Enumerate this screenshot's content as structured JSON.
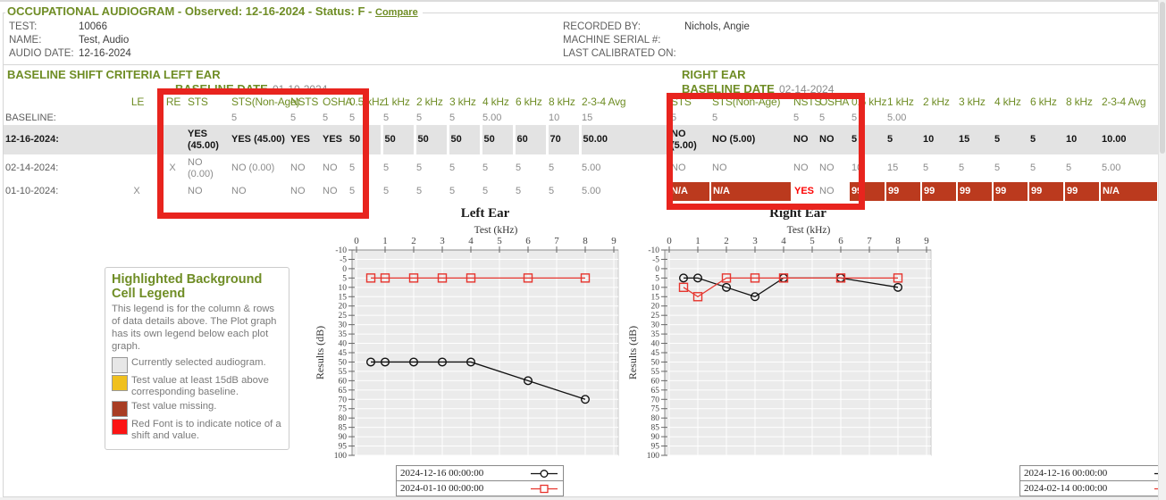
{
  "header": {
    "title": "OCCUPATIONAL AUDIOGRAM",
    "observed": "- Observed: 12-16-2024 - Status: F -",
    "compare_label": "Compare",
    "info_left": [
      {
        "label": "TEST:",
        "value": "10066"
      },
      {
        "label": "NAME:",
        "value": "Test, Audio"
      },
      {
        "label": "AUDIO DATE:",
        "value": "12-16-2024"
      }
    ],
    "info_right": [
      {
        "label": "RECORDED BY:",
        "value": "Nichols, Angie"
      },
      {
        "label": "MACHINE SERIAL #:",
        "value": ""
      },
      {
        "label": "LAST CALIBRATED ON:",
        "value": ""
      }
    ]
  },
  "criteria": {
    "left_title": "BASELINE SHIFT CRITERIA LEFT EAR",
    "right_title": "RIGHT EAR",
    "baseline_date_label": "BASELINE DATE",
    "left_baseline_date": "01-10-2024",
    "right_baseline_date": "02-14-2024",
    "columns": [
      "",
      "LE",
      "RE",
      "STS",
      "STS(Non-Age)",
      "NSTS",
      "OSHA",
      "0.5 kHz",
      "1 kHz",
      "2 kHz",
      "3 kHz",
      "4 kHz",
      "6 kHz",
      "8 kHz",
      "2-3-4 Avg",
      "STS",
      "STS(Non-Age)",
      "NSTS",
      "OSHA",
      "0.5 kHz",
      "1 kHz",
      "2 kHz",
      "3 kHz",
      "4 kHz",
      "6 kHz",
      "8 kHz",
      "2-3-4 Avg"
    ],
    "rows": [
      {
        "label": "BASELINE:",
        "style": "",
        "cells": [
          "",
          "",
          "",
          "5",
          "5",
          "5",
          "5",
          "5",
          "5",
          "5",
          "5.00",
          "",
          "10",
          "15",
          "5",
          "5",
          "5",
          "5",
          "5",
          "5.00",
          "",
          "",
          "",
          "",
          "",
          ""
        ]
      },
      {
        "label": "12-16-2024:",
        "style": "selected",
        "cells": [
          "",
          "",
          [
            "YES (45.00)",
            "red"
          ],
          [
            "YES (45.00)",
            "red nw"
          ],
          [
            "YES",
            "red"
          ],
          [
            "YES",
            "red"
          ],
          [
            "50",
            "yellow"
          ],
          [
            "50",
            "yellow"
          ],
          [
            "50",
            "yellow"
          ],
          [
            "50",
            "yellow"
          ],
          [
            "50",
            "yellow"
          ],
          [
            "60",
            "yellow"
          ],
          [
            "70",
            "yellow"
          ],
          "50.00",
          "NO (5.00)",
          [
            "NO (5.00)",
            "nw"
          ],
          "NO",
          "NO",
          "5",
          "5",
          "10",
          "15",
          "5",
          "5",
          "10",
          "10.00"
        ]
      },
      {
        "label": "02-14-2024:",
        "style": "",
        "cells": [
          "",
          "X",
          "NO (0.00)",
          [
            "NO (0.00)",
            "nw"
          ],
          "NO",
          "NO",
          "5",
          "5",
          "5",
          "5",
          "5",
          "5",
          "5",
          "5.00",
          "NO",
          "NO",
          "NO",
          "NO",
          "10",
          "15",
          "5",
          "5",
          "5",
          "5",
          "5",
          "5.00"
        ]
      },
      {
        "label": "01-10-2024:",
        "style": "",
        "cells": [
          "X",
          "",
          "NO",
          "NO",
          "NO",
          "NO",
          "5",
          "5",
          "5",
          "5",
          "5",
          "5",
          "5",
          "5.00",
          [
            "N/A",
            "darkred"
          ],
          [
            "N/A",
            "darkred"
          ],
          [
            "YES",
            "red"
          ],
          "NO",
          [
            "99",
            "darkred"
          ],
          [
            "99",
            "darkred"
          ],
          [
            "99",
            "darkred"
          ],
          [
            "99",
            "darkred"
          ],
          [
            "99",
            "darkred"
          ],
          [
            "99",
            "darkred"
          ],
          [
            "99",
            "darkred"
          ],
          [
            "N/A",
            "darkred"
          ]
        ]
      }
    ]
  },
  "cell_legend": {
    "title": "Highlighted Background Cell Legend",
    "description": "This legend is for the column & rows of data details above. The Plot graph has its own legend below each plot graph.",
    "items": [
      {
        "color": "#e7e7e7",
        "label": "Currently selected audiogram."
      },
      {
        "color": "#f0c01e",
        "label": "Test value at least 15dB above corresponding baseline."
      },
      {
        "color": "#a83d24",
        "label": "Test value missing."
      },
      {
        "color": "#fb1414",
        "label": "Red Font is to indicate notice of a shift and value."
      }
    ]
  },
  "colors": {
    "accent_green": "#6f8d25",
    "alert_red": "#fd0404",
    "highlight_yellow": "#f5c42a",
    "missing_red": "#bb3a1e",
    "selected_gray": "#e3e3e3",
    "annotation_red": "#e8241e",
    "series_red": "#e6352e",
    "series_black": "#111111"
  },
  "chart_data": [
    {
      "type": "line",
      "title": "Left Ear",
      "xlabel": "Test (kHz)",
      "ylabel": "Results (dB)",
      "x_ticks": [
        0,
        1,
        2,
        3,
        4,
        5,
        6,
        7,
        8,
        9
      ],
      "ylim": [
        -10,
        100
      ],
      "y_step": 5,
      "y_inverted": true,
      "x": [
        0.5,
        1,
        2,
        3,
        4,
        6,
        8
      ],
      "series": [
        {
          "name": "2024-12-16 00:00:00",
          "marker": "circle",
          "color": "#111111",
          "values": [
            50,
            50,
            50,
            50,
            50,
            60,
            70
          ]
        },
        {
          "name": "2024-01-10 00:00:00",
          "marker": "square",
          "color": "#e6352e",
          "values": [
            5,
            5,
            5,
            5,
            5,
            5,
            5
          ]
        }
      ]
    },
    {
      "type": "line",
      "title": "Right Ear",
      "xlabel": "Test (kHz)",
      "ylabel": "Results (dB)",
      "x_ticks": [
        0,
        1,
        2,
        3,
        4,
        5,
        6,
        7,
        8,
        9
      ],
      "ylim": [
        -10,
        100
      ],
      "y_step": 5,
      "y_inverted": true,
      "x": [
        0.5,
        1,
        2,
        3,
        4,
        6,
        8
      ],
      "series": [
        {
          "name": "2024-12-16 00:00:00",
          "marker": "circle",
          "color": "#111111",
          "values": [
            5,
            5,
            10,
            15,
            5,
            5,
            10
          ]
        },
        {
          "name": "2024-02-14 00:00:00",
          "marker": "square",
          "color": "#e6352e",
          "values": [
            10,
            15,
            5,
            5,
            5,
            5,
            5
          ]
        }
      ]
    }
  ]
}
